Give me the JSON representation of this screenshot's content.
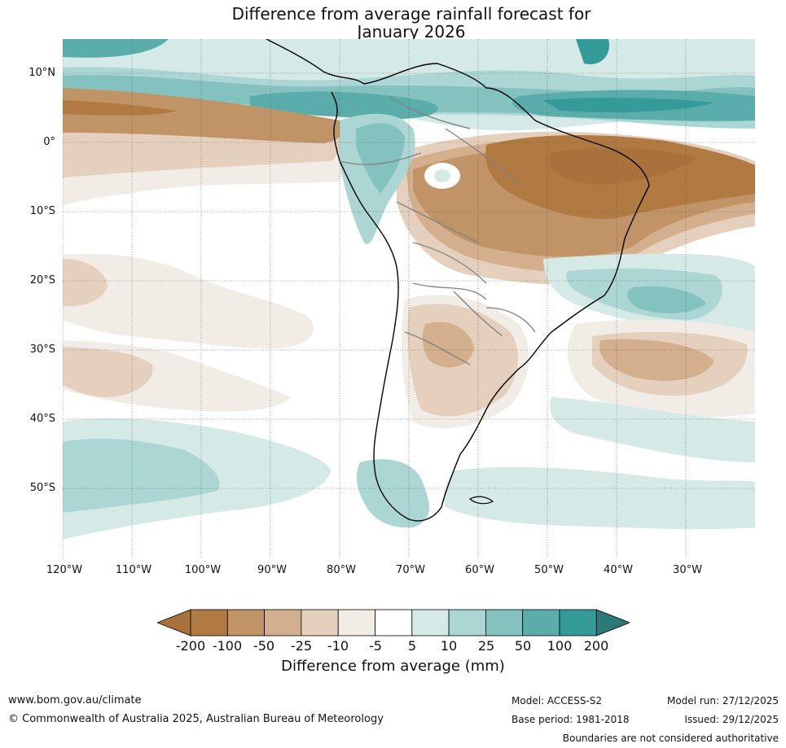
{
  "title": {
    "line1": "Difference from average rainfall forecast for",
    "line2": "January 2026"
  },
  "map": {
    "lat_labels": [
      "10°N",
      "0°",
      "10°S",
      "20°S",
      "30°S",
      "40°S",
      "50°S"
    ],
    "lon_labels": [
      "120°W",
      "110°W",
      "100°W",
      "90°W",
      "80°W",
      "70°W",
      "60°W",
      "50°W",
      "40°W",
      "30°W"
    ],
    "region": "South America"
  },
  "legend": {
    "ticks": [
      "-200",
      "-100",
      "-50",
      "-25",
      "-10",
      "-5",
      "5",
      "10",
      "25",
      "50",
      "100",
      "200"
    ],
    "colors": [
      "#a9713c",
      "#b07a42",
      "#c19467",
      "#d3af8e",
      "#e5d0bd",
      "#f2ece6",
      "#ffffff",
      "#d5e9e7",
      "#acd6d4",
      "#84c2c0",
      "#5aadab",
      "#349b99",
      "#2b7a78"
    ],
    "title": "Difference from average (mm)"
  },
  "footer": {
    "url": "www.bom.gov.au/climate",
    "copyright": "© Commonwealth of Australia 2025, Australian Bureau of Meteorology",
    "model": "Model: ACCESS-S2",
    "model_run": "Model run: 27/12/2025",
    "base_period": "Base period: 1981-2018",
    "issued": "Issued: 29/12/2025",
    "disclaimer": "Boundaries are not considered authoritative"
  }
}
